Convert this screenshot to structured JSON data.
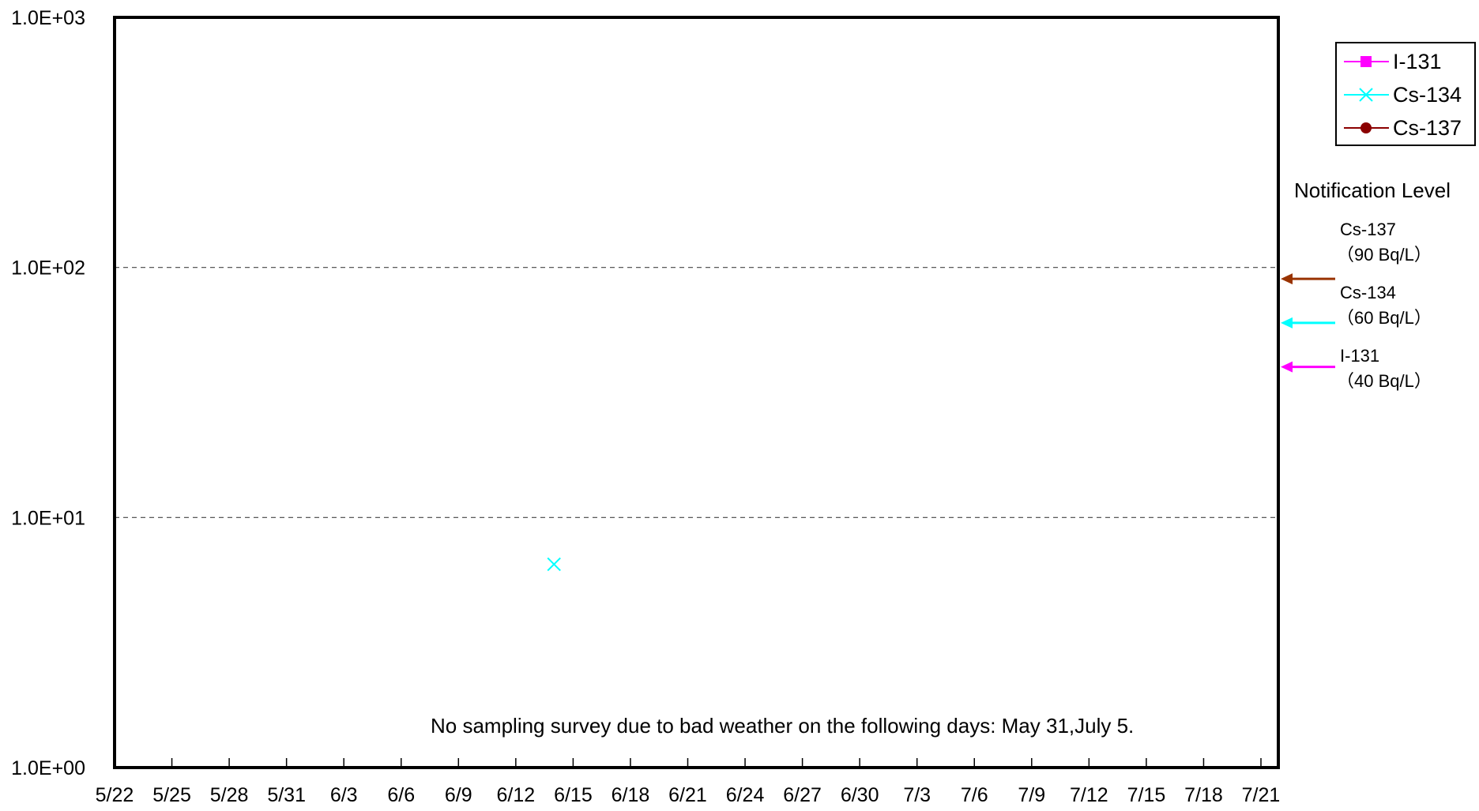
{
  "chart_data": {
    "type": "scatter",
    "title": "",
    "xlabel": "",
    "ylabel": "",
    "x_tick_labels": [
      "5/22",
      "5/25",
      "5/28",
      "5/31",
      "6/3",
      "6/6",
      "6/9",
      "6/12",
      "6/15",
      "6/18",
      "6/21",
      "6/24",
      "6/27",
      "6/30",
      "7/3",
      "7/6",
      "7/9",
      "7/12",
      "7/15",
      "7/18",
      "7/21"
    ],
    "y_scale": "log",
    "ylim": [
      1,
      1000
    ],
    "y_tick_labels": [
      "1.0E+00",
      "1.0E+01",
      "1.0E+02",
      "1.0E+03"
    ],
    "grid": "dashed horizontal at decades",
    "legend_position": "top-right",
    "series": [
      {
        "name": "I-131",
        "marker": "square",
        "color": "#ff00ff",
        "points": []
      },
      {
        "name": "Cs-134",
        "marker": "x",
        "color": "#00ffff",
        "points": [
          {
            "x": "6/14",
            "y": 6.5
          }
        ]
      },
      {
        "name": "Cs-137",
        "marker": "circle",
        "color": "#8b0000",
        "points": []
      }
    ],
    "notification_level": {
      "title": "Notification Level",
      "levels": [
        {
          "nuclide": "Cs-137",
          "label": "（90 Bq/L）",
          "value": 90,
          "color": "#993300"
        },
        {
          "nuclide": "Cs-134",
          "label": "（60 Bq/L）",
          "value": 60,
          "color": "#00ffff"
        },
        {
          "nuclide": "I-131",
          "label": "（40 Bq/L）",
          "value": 40,
          "color": "#ff00ff"
        }
      ]
    },
    "annotation": "No sampling survey due to bad weather on the following days: May 31,July 5."
  }
}
